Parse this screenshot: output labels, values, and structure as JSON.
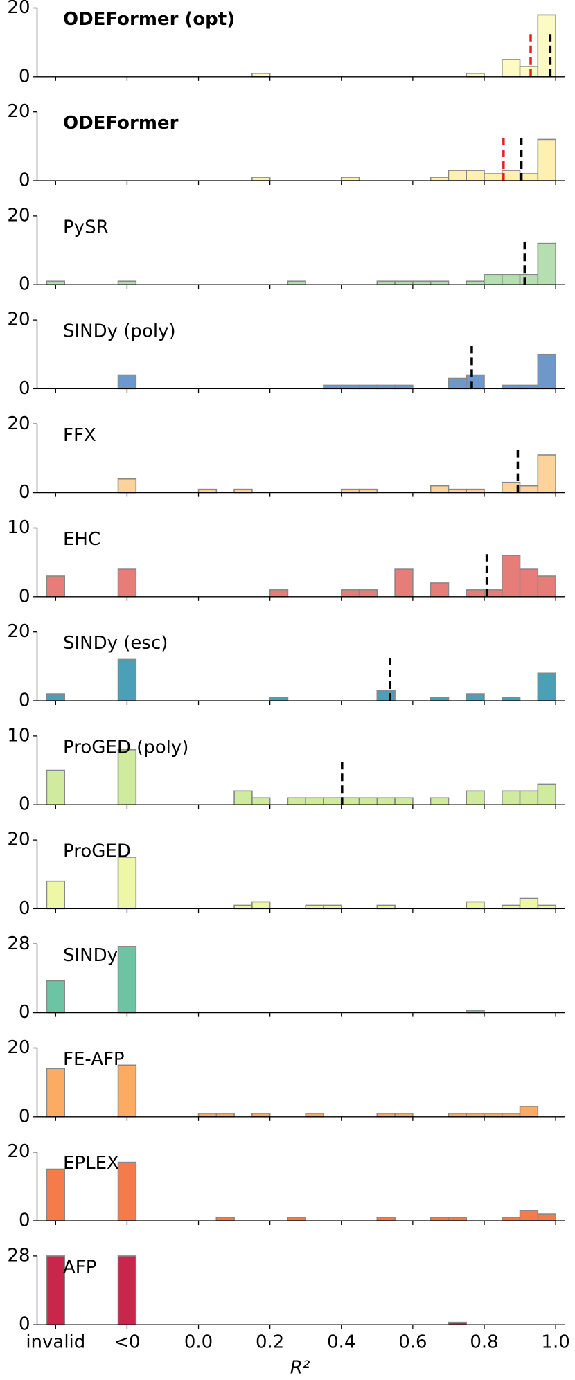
{
  "chart_data": {
    "type": "histogram-panels",
    "xlabel": "R²",
    "xlim": [
      -0.452,
      1.025
    ],
    "xticks": [
      {
        "value": -0.4,
        "label": "invalid"
      },
      {
        "value": -0.2,
        "label": "<0"
      },
      {
        "value": 0,
        "label": "0.0"
      },
      0.2,
      0.4,
      0.6,
      0.8,
      {
        "value": 1,
        "label": "1.0"
      }
    ],
    "bar_width": 0.05,
    "x": [
      -0.4,
      -0.2,
      0.025,
      0.075,
      0.125,
      0.175,
      0.225,
      0.275,
      0.325,
      0.375,
      0.425,
      0.475,
      0.525,
      0.575,
      0.625,
      0.675,
      0.725,
      0.775,
      0.825,
      0.875,
      0.925,
      0.975
    ],
    "panels": [
      {
        "title": "ODEFormer (opt)",
        "bold": true,
        "color": "#fdfbc4",
        "ylim": [
          0,
          20
        ],
        "yticks": [
          0,
          20
        ],
        "values": [
          0,
          0,
          0,
          0,
          0,
          1,
          0,
          0,
          0,
          0,
          0,
          0,
          0,
          0,
          0,
          0,
          0,
          1,
          0,
          5,
          3,
          18
        ],
        "lines": [
          {
            "value": 0.93,
            "color": "#e8201c"
          },
          {
            "value": 0.985,
            "color": "#000000"
          }
        ]
      },
      {
        "title": "ODEFormer",
        "bold": true,
        "color": "#fef1b0",
        "ylim": [
          0,
          20
        ],
        "yticks": [
          0,
          20
        ],
        "values": [
          0,
          0,
          0,
          0,
          0,
          1,
          0,
          0,
          0,
          0,
          1,
          0,
          0,
          0,
          0,
          1,
          3,
          3,
          2,
          3,
          2,
          12
        ],
        "lines": [
          {
            "value": 0.854,
            "color": "#e8201c"
          },
          {
            "value": 0.904,
            "color": "#000000"
          }
        ]
      },
      {
        "title": "PySR",
        "bold": false,
        "color": "#b6dfb1",
        "ylim": [
          0,
          20
        ],
        "yticks": [
          0,
          20
        ],
        "values": [
          1,
          1,
          0,
          0,
          0,
          0,
          0,
          1,
          0,
          0,
          0,
          0,
          1,
          1,
          1,
          1,
          0,
          1,
          3,
          3,
          3,
          12
        ],
        "lines": [
          {
            "value": 0.913,
            "color": "#000000"
          }
        ]
      },
      {
        "title": "SINDy (poly)",
        "bold": false,
        "color": "#6e98cb",
        "ylim": [
          0,
          20
        ],
        "yticks": [
          0,
          20
        ],
        "values": [
          0,
          4,
          0,
          0,
          0,
          0,
          0,
          0,
          0,
          1,
          1,
          1,
          1,
          1,
          0,
          0,
          3,
          4,
          0,
          1,
          1,
          10
        ],
        "lines": [
          {
            "value": 0.765,
            "color": "#000000"
          }
        ]
      },
      {
        "title": "FFX",
        "bold": false,
        "color": "#fdd39a",
        "ylim": [
          0,
          20
        ],
        "yticks": [
          0,
          20
        ],
        "values": [
          0,
          4,
          1,
          0,
          1,
          0,
          0,
          0,
          0,
          0,
          1,
          1,
          0,
          0,
          0,
          2,
          1,
          1,
          0,
          3,
          2,
          11
        ],
        "lines": [
          {
            "value": 0.894,
            "color": "#000000"
          }
        ]
      },
      {
        "title": "EHC",
        "bold": false,
        "color": "#e77d78",
        "ylim": [
          0,
          10
        ],
        "yticks": [
          0,
          10
        ],
        "values": [
          3,
          4,
          0,
          0,
          0,
          0,
          1,
          0,
          0,
          0,
          1,
          1,
          0,
          4,
          0,
          2,
          0,
          1,
          1,
          6,
          4,
          3
        ],
        "lines": [
          {
            "value": 0.807,
            "color": "#000000"
          }
        ]
      },
      {
        "title": "SINDy (esc)",
        "bold": false,
        "color": "#4aa0b6",
        "ylim": [
          0,
          20
        ],
        "yticks": [
          0,
          20
        ],
        "values": [
          2,
          12,
          0,
          0,
          0,
          0,
          1,
          0,
          0,
          0,
          0,
          0,
          3,
          0,
          0,
          1,
          0,
          2,
          0,
          1,
          0,
          8
        ],
        "lines": [
          {
            "value": 0.536,
            "color": "#000000"
          }
        ]
      },
      {
        "title": "ProGED (poly)",
        "bold": false,
        "color": "#d1eb9e",
        "ylim": [
          0,
          10
        ],
        "yticks": [
          0,
          10
        ],
        "values": [
          5,
          8,
          0,
          0,
          2,
          1,
          0,
          1,
          1,
          1,
          1,
          1,
          1,
          1,
          0,
          1,
          0,
          2,
          0,
          2,
          2,
          3
        ],
        "lines": [
          {
            "value": 0.402,
            "color": "#000000"
          }
        ]
      },
      {
        "title": "ProGED",
        "bold": false,
        "color": "#eef7a5",
        "ylim": [
          0,
          20
        ],
        "yticks": [
          0,
          20
        ],
        "values": [
          8,
          15,
          0,
          0,
          1,
          2,
          0,
          0,
          1,
          1,
          0,
          0,
          1,
          0,
          0,
          0,
          0,
          2,
          0,
          1,
          3,
          1
        ],
        "lines": []
      },
      {
        "title": "SINDy",
        "bold": false,
        "color": "#6cc4a5",
        "ylim": [
          0,
          28
        ],
        "yticks": [
          0,
          28
        ],
        "values": [
          13,
          27,
          0,
          0,
          0,
          0,
          0,
          0,
          0,
          0,
          0,
          0,
          0,
          0,
          0,
          0,
          0,
          1,
          0,
          0,
          0,
          0
        ],
        "lines": []
      },
      {
        "title": "FE-AFP",
        "bold": false,
        "color": "#fcab63",
        "ylim": [
          0,
          20
        ],
        "yticks": [
          0,
          20
        ],
        "values": [
          14,
          15,
          1,
          1,
          0,
          1,
          0,
          0,
          1,
          0,
          0,
          0,
          1,
          1,
          0,
          0,
          1,
          1,
          1,
          1,
          3,
          0
        ],
        "lines": []
      },
      {
        "title": "EPLEX",
        "bold": false,
        "color": "#f57b4b",
        "ylim": [
          0,
          20
        ],
        "yticks": [
          0,
          20
        ],
        "values": [
          15,
          17,
          0,
          1,
          0,
          0,
          0,
          1,
          0,
          0,
          0,
          0,
          1,
          0,
          0,
          1,
          1,
          0,
          0,
          1,
          3,
          2
        ],
        "lines": []
      },
      {
        "title": "AFP",
        "bold": false,
        "color": "#c8274b",
        "ylim": [
          0,
          28
        ],
        "yticks": [
          0,
          28
        ],
        "values": [
          28,
          28,
          0,
          0,
          0,
          0,
          0,
          0,
          0,
          0,
          0,
          0,
          0,
          0,
          0,
          0,
          1,
          0,
          0,
          0,
          0,
          0
        ],
        "lines": []
      }
    ]
  }
}
